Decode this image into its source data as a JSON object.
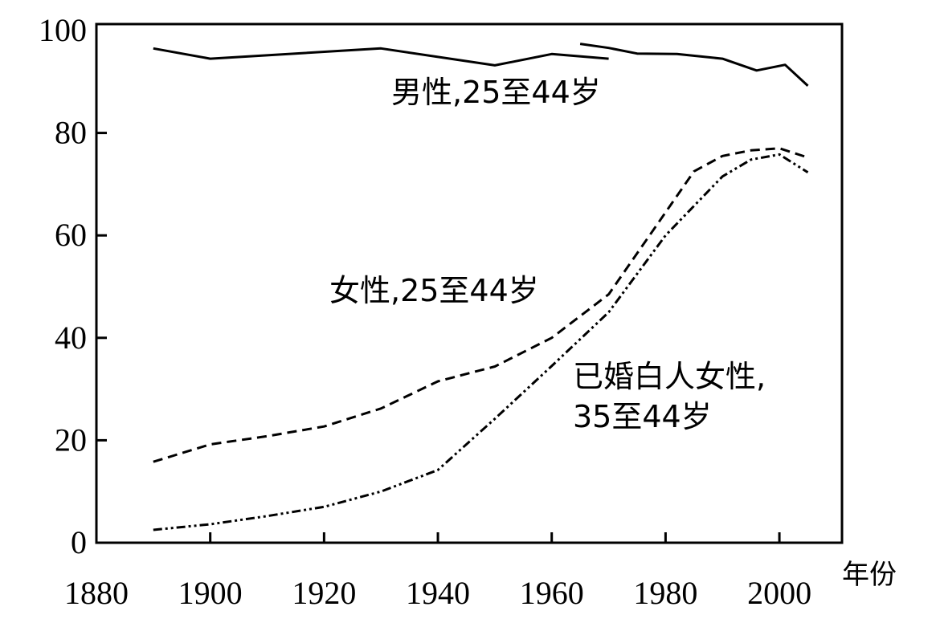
{
  "chart_data": {
    "type": "line",
    "title": "",
    "xlabel": "年份",
    "ylabel": "",
    "xlim": [
      1880,
      2011
    ],
    "ylim": [
      0,
      100
    ],
    "xticks": [
      "1880",
      "1900",
      "1920",
      "1940",
      "1960",
      "1980",
      "2000"
    ],
    "yticks": [
      "0",
      "20",
      "40",
      "60",
      "80",
      "100"
    ],
    "grid": false,
    "legend": "none (inline labels)",
    "series": [
      {
        "name": "男性,25至44岁",
        "style": "solid",
        "segments": [
          [
            [
              1890,
              96.5
            ],
            [
              1900,
              94.5
            ],
            [
              1930,
              96.5
            ],
            [
              1950,
              93.2
            ],
            [
              1960,
              95.4
            ],
            [
              1970,
              94.5
            ]
          ],
          [
            [
              1965,
              97.4
            ],
            [
              1970,
              96.6
            ],
            [
              1975,
              95.5
            ],
            [
              1982,
              95.4
            ],
            [
              1990,
              94.5
            ],
            [
              1996,
              92.2
            ],
            [
              2001,
              93.3
            ],
            [
              2005,
              89.2
            ]
          ]
        ]
      },
      {
        "name": "女性,25至44岁",
        "style": "dashed",
        "segments": [
          [
            [
              1890,
              15.8
            ],
            [
              1900,
              19.2
            ],
            [
              1910,
              20.8
            ],
            [
              1920,
              22.7
            ],
            [
              1930,
              26.2
            ],
            [
              1940,
              31.5
            ],
            [
              1950,
              34.4
            ],
            [
              1960,
              40.0
            ],
            [
              1970,
              48.5
            ],
            [
              1980,
              64.5
            ],
            [
              1985,
              72.5
            ],
            [
              1990,
              75.5
            ],
            [
              1995,
              76.6
            ],
            [
              2000,
              77.0
            ],
            [
              2005,
              75.2
            ]
          ]
        ]
      },
      {
        "name": "已婚白人女性,35至44岁",
        "style": "dash-dot-dot",
        "segments": [
          [
            [
              1890,
              2.5
            ],
            [
              1900,
              3.6
            ],
            [
              1910,
              5.2
            ],
            [
              1920,
              7.0
            ],
            [
              1930,
              10.0
            ],
            [
              1940,
              14.2
            ],
            [
              1950,
              24.2
            ],
            [
              1960,
              34.5
            ],
            [
              1970,
              45.0
            ],
            [
              1980,
              60.0
            ],
            [
              1990,
              71.5
            ],
            [
              1995,
              74.8
            ],
            [
              2000,
              75.8
            ],
            [
              2005,
              72.3
            ]
          ]
        ]
      }
    ],
    "annotations": {
      "male": "男性,25至44岁",
      "female": "女性,25至44岁",
      "married_line1": "已婚白人女性,",
      "married_line2": "35至44岁"
    }
  }
}
